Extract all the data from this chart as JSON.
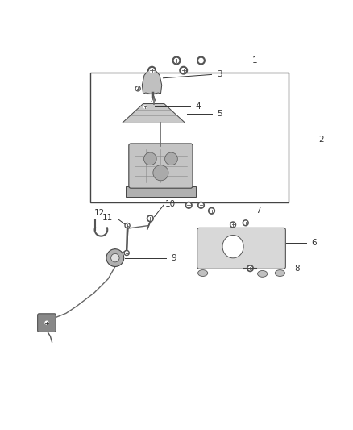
{
  "bg_color": "#ffffff",
  "fig_width": 4.38,
  "fig_height": 5.33,
  "dpi": 100,
  "line_color": "#333333",
  "label_color": "#333333",
  "part_gray": "#aaaaaa",
  "part_dark": "#555555",
  "part_light": "#cccccc"
}
